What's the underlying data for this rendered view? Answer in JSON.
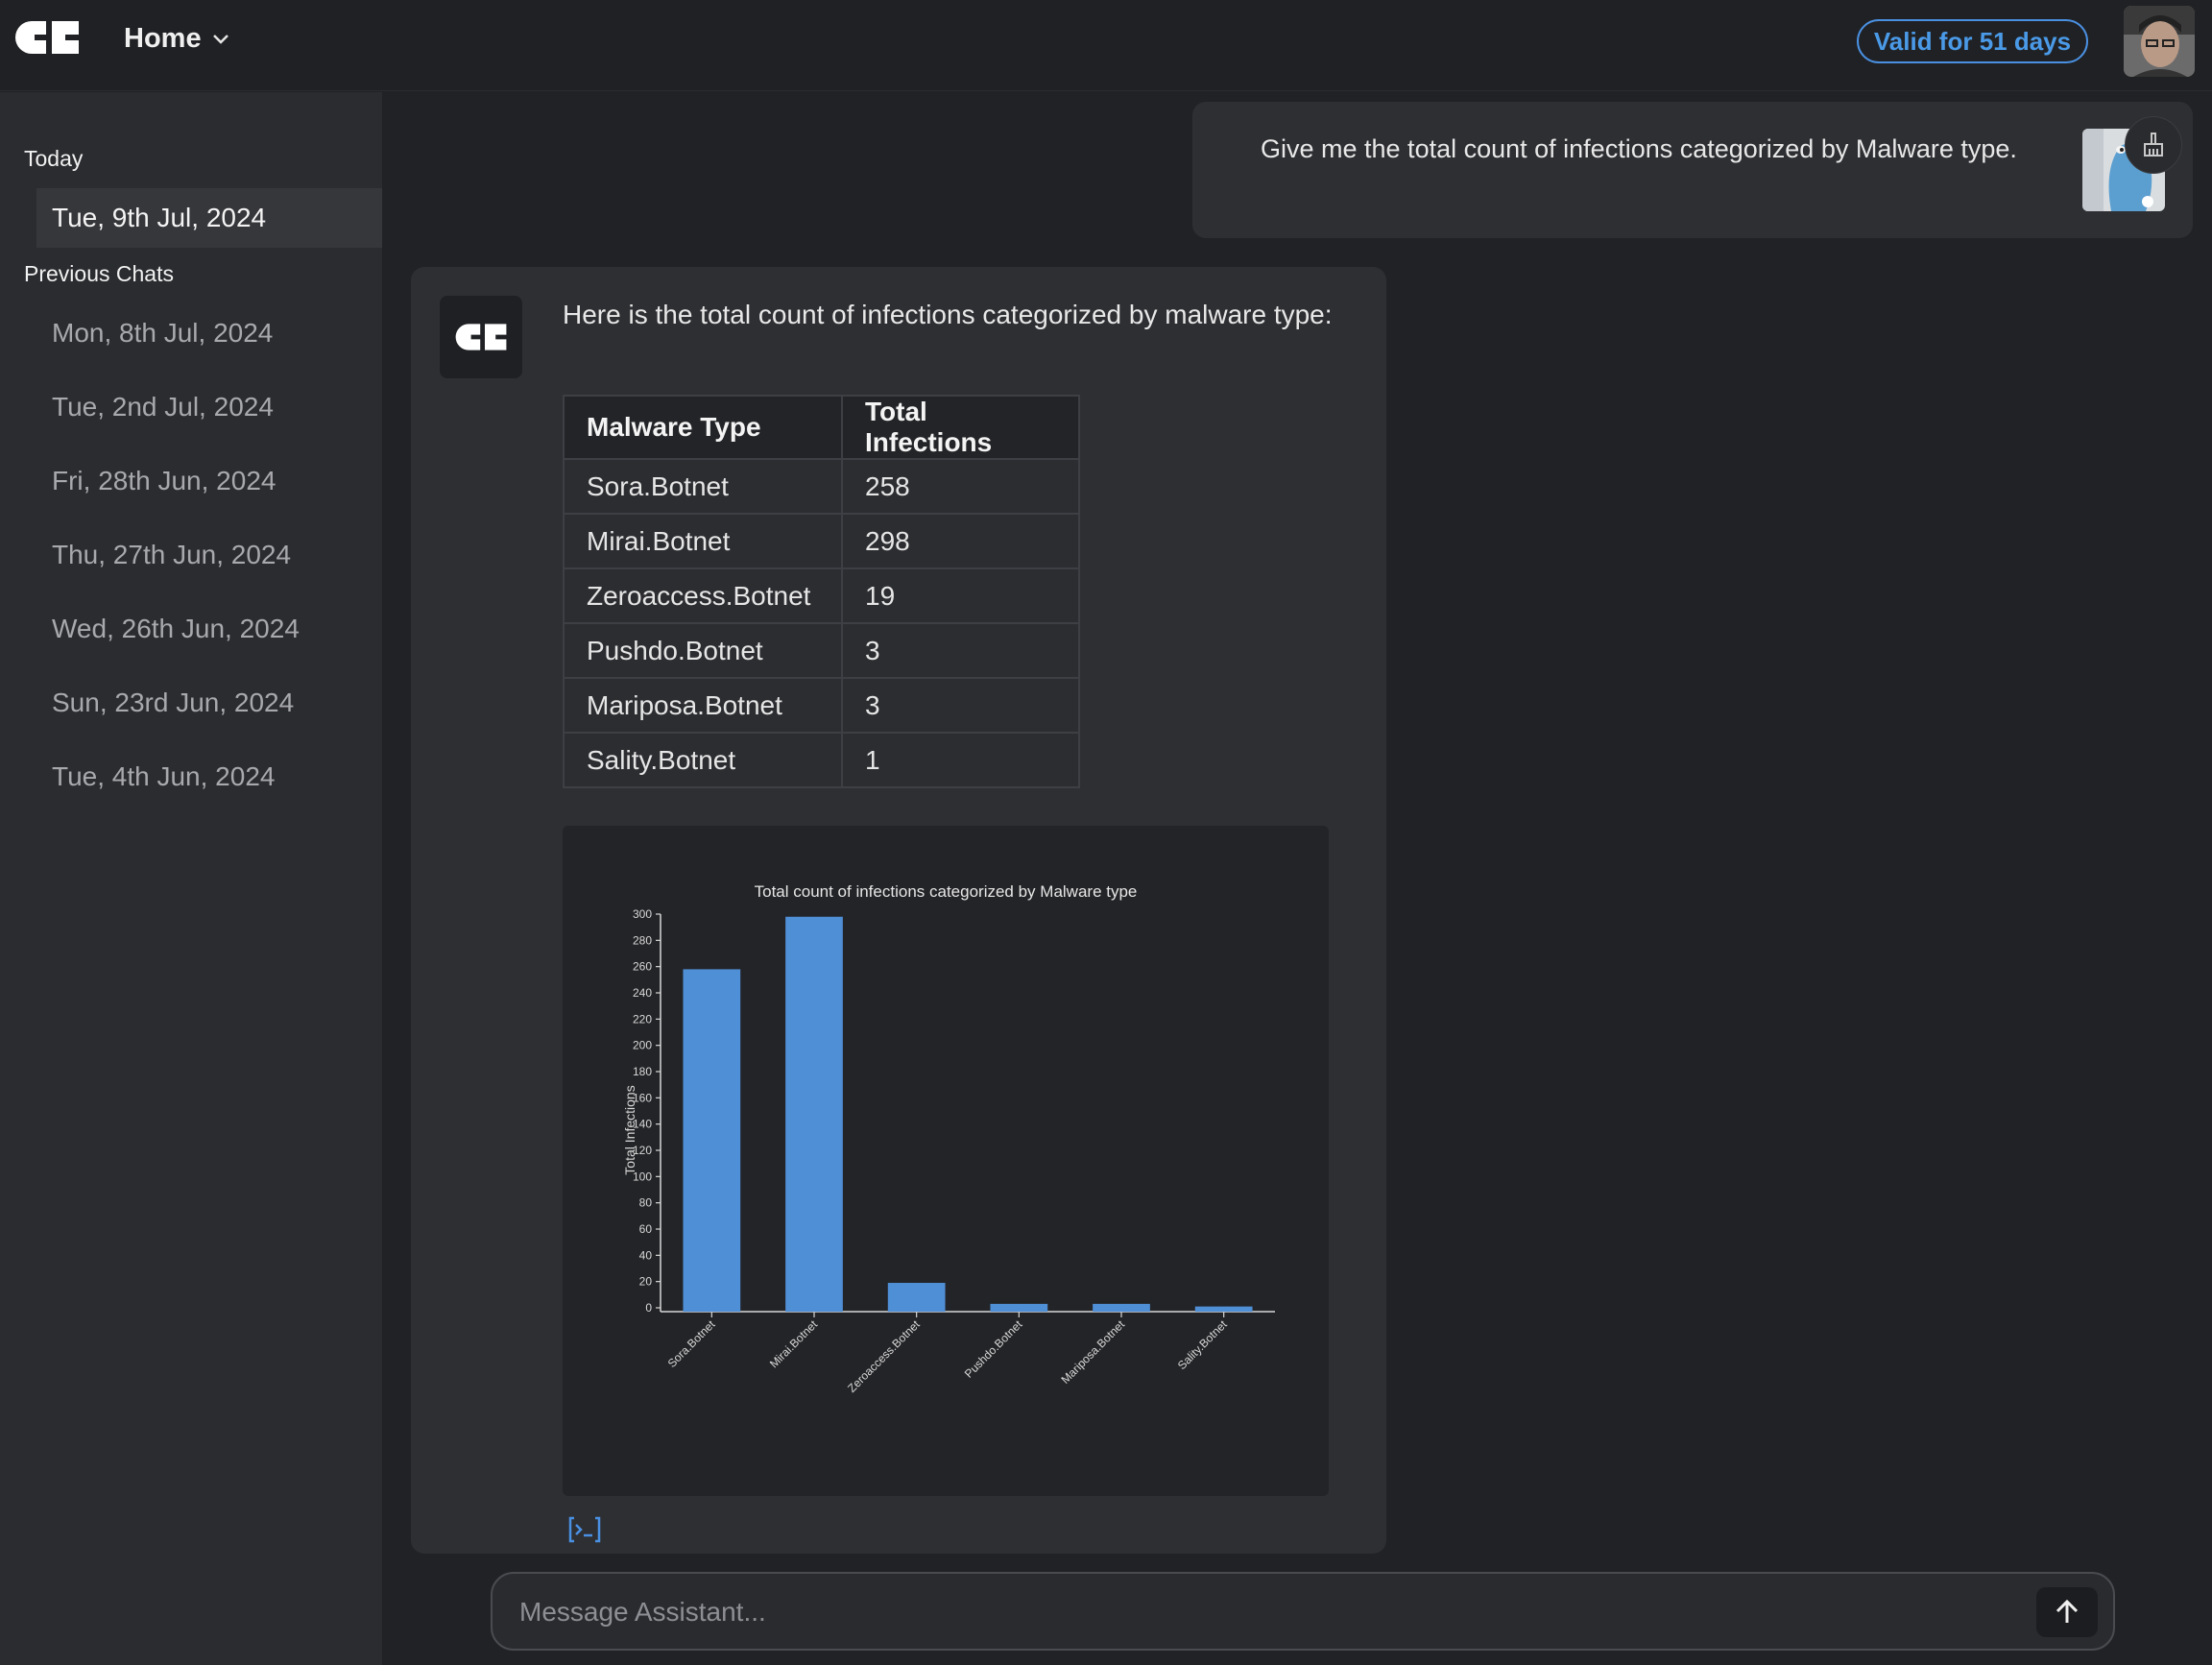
{
  "header": {
    "nav_label": "Home",
    "valid_badge": "Valid for 51 days"
  },
  "sidebar": {
    "today_heading": "Today",
    "today_items": [
      {
        "label": "Tue, 9th Jul, 2024"
      }
    ],
    "previous_heading": "Previous Chats",
    "previous_items": [
      {
        "label": "Mon, 8th Jul, 2024"
      },
      {
        "label": "Tue, 2nd Jul, 2024"
      },
      {
        "label": "Fri, 28th Jun, 2024"
      },
      {
        "label": "Thu, 27th Jun, 2024"
      },
      {
        "label": "Wed, 26th Jun, 2024"
      },
      {
        "label": "Sun, 23rd Jun, 2024"
      },
      {
        "label": "Tue, 4th Jun, 2024"
      }
    ]
  },
  "conversation": {
    "user_message": "Give me the total count of infections categorized by Malware type.",
    "assistant_intro": "Here is the total count of infections categorized by malware type:",
    "table": {
      "headers": [
        "Malware Type",
        "Total Infections"
      ],
      "rows": [
        [
          "Sora.Botnet",
          "258"
        ],
        [
          "Mirai.Botnet",
          "298"
        ],
        [
          "Zeroaccess.Botnet",
          "19"
        ],
        [
          "Pushdo.Botnet",
          "3"
        ],
        [
          "Mariposa.Botnet",
          "3"
        ],
        [
          "Sality.Botnet",
          "1"
        ]
      ]
    }
  },
  "composer": {
    "placeholder": "Message Assistant..."
  },
  "colors": {
    "accent": "#4a90e2",
    "bar": "#4f8fd6"
  },
  "chart_data": {
    "type": "bar",
    "title": "Total count of infections categorized by Malware type",
    "xlabel": "",
    "ylabel": "Total Infections",
    "categories": [
      "Sora.Botnet",
      "Mirai.Botnet",
      "Zeroaccess.Botnet",
      "Pushdo.Botnet",
      "Mariposa.Botnet",
      "Sality.Botnet"
    ],
    "values": [
      258,
      298,
      19,
      3,
      3,
      1
    ],
    "ylim": [
      0,
      300
    ],
    "yticks": [
      0,
      20,
      40,
      60,
      80,
      100,
      120,
      140,
      160,
      180,
      200,
      220,
      240,
      260,
      280,
      300
    ],
    "grid": false,
    "legend": "none"
  }
}
